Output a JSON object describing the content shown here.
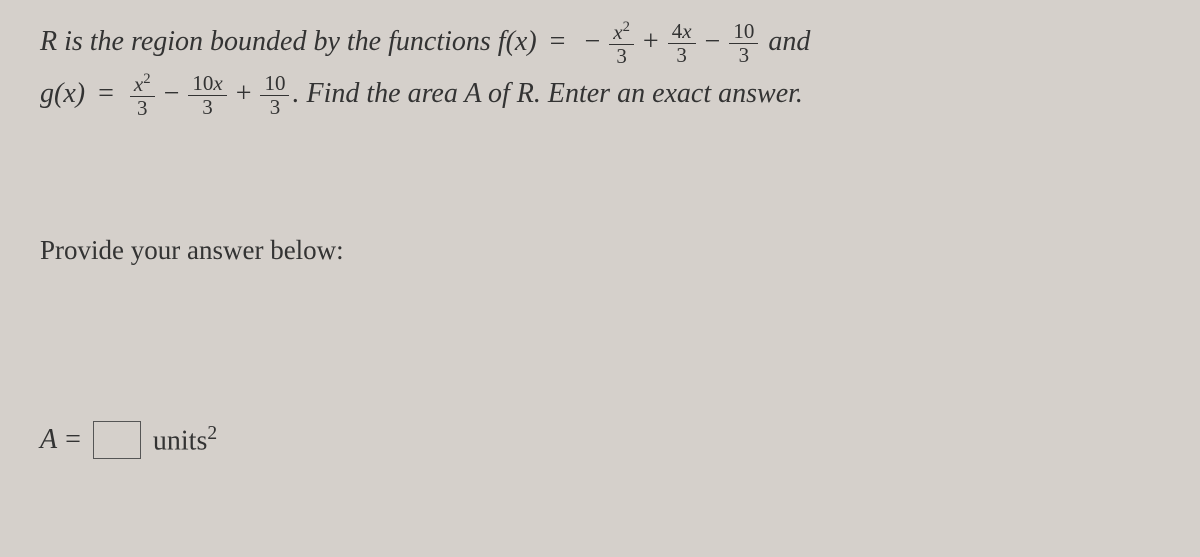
{
  "problem": {
    "line1_prefix": "R is the region bounded by the functions ",
    "f_label": "f",
    "g_label": "g",
    "var": "x",
    "line1_suffix": " and",
    "f_expr": {
      "terms": [
        {
          "sign": "−",
          "num_html": "<span class=\"var\">x</span><sup>2</sup>",
          "den": "3"
        },
        {
          "sign": "+",
          "num_html": "4<span class=\"var\">x</span>",
          "den": "3"
        },
        {
          "sign": "−",
          "num_html": "10",
          "den": "3"
        }
      ]
    },
    "g_expr": {
      "terms": [
        {
          "sign": "",
          "num_html": "<span class=\"var\">x</span><sup>2</sup>",
          "den": "3"
        },
        {
          "sign": "−",
          "num_html": "10<span class=\"var\">x</span>",
          "den": "3"
        },
        {
          "sign": "+",
          "num_html": "10",
          "den": "3"
        }
      ]
    },
    "line2_suffix": ". Find the area ",
    "area_var": "A",
    "line2_suffix2": " of ",
    "region_var": "R",
    "line2_suffix3": ". Enter an exact answer."
  },
  "prompt": "Provide your answer below:",
  "answer": {
    "label": "A",
    "equals": "=",
    "value": "",
    "units_text": "units",
    "units_exp": "2"
  },
  "colors": {
    "background": "#d5d0cb",
    "text": "#333333",
    "border": "#555555"
  }
}
